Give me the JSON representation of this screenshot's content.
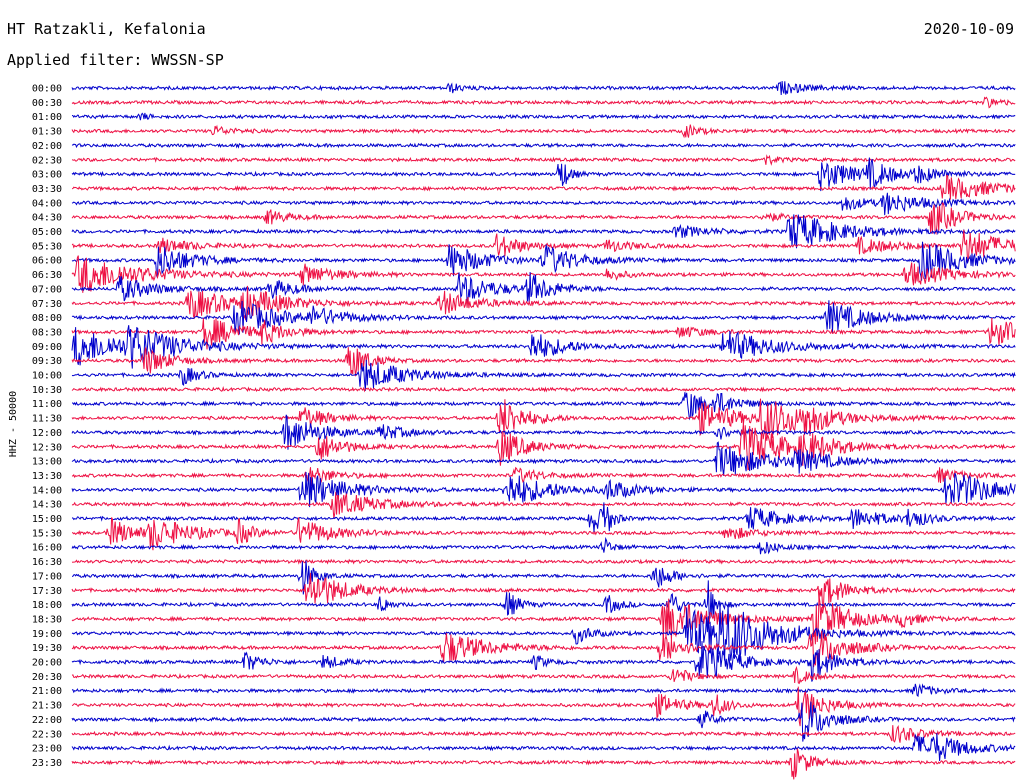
{
  "header": {
    "station": "HT Ratzakli, Kefalonia",
    "date": "2020-10-09",
    "filter_label": "Applied filter: WWSSN-SP"
  },
  "chart_data": {
    "type": "line",
    "ylabel": "HHZ - 50000",
    "row_labels": [
      "00:00",
      "00:30",
      "01:00",
      "01:30",
      "02:00",
      "02:30",
      "03:00",
      "03:30",
      "04:00",
      "04:30",
      "05:00",
      "05:30",
      "06:00",
      "06:30",
      "07:00",
      "07:30",
      "08:00",
      "08:30",
      "09:00",
      "09:30",
      "10:00",
      "10:30",
      "11:00",
      "11:30",
      "12:00",
      "12:30",
      "13:00",
      "13:30",
      "14:00",
      "14:30",
      "15:00",
      "15:30",
      "16:00",
      "16:30",
      "17:00",
      "17:30",
      "18:00",
      "18:30",
      "19:00",
      "19:30",
      "20:00",
      "20:30",
      "21:00",
      "21:30",
      "22:00",
      "22:30",
      "23:00",
      "23:30"
    ],
    "colors": [
      "#0000cc",
      "#ee1144"
    ],
    "row_minutes": 30,
    "events": [
      [
        0,
        12.0,
        3,
        0.4
      ],
      [
        0,
        22.5,
        6,
        0.5
      ],
      [
        1,
        29.0,
        4,
        0.4
      ],
      [
        2,
        2.2,
        2,
        0.3
      ],
      [
        3,
        4.5,
        4,
        0.4
      ],
      [
        3,
        19.5,
        3,
        0.6
      ],
      [
        5,
        22.0,
        3,
        0.4
      ],
      [
        6,
        15.5,
        2,
        1.6
      ],
      [
        6,
        23.8,
        8,
        1.3
      ],
      [
        6,
        25.3,
        6,
        1.0
      ],
      [
        6,
        26.8,
        6,
        0.6
      ],
      [
        7,
        27.7,
        12,
        1.0
      ],
      [
        8,
        24.5,
        6,
        0.6
      ],
      [
        8,
        25.8,
        10,
        0.8
      ],
      [
        9,
        6.2,
        5,
        0.6
      ],
      [
        9,
        27.3,
        6,
        1.6
      ],
      [
        9,
        22.0,
        4,
        0.4
      ],
      [
        10,
        22.8,
        12,
        1.6
      ],
      [
        10,
        19.2,
        8,
        0.5
      ],
      [
        11,
        2.8,
        8,
        0.6
      ],
      [
        11,
        13.5,
        6,
        1.0
      ],
      [
        11,
        17.0,
        6,
        0.5
      ],
      [
        11,
        25.0,
        10,
        0.6
      ],
      [
        11,
        28.3,
        10,
        1.4
      ],
      [
        12,
        2.7,
        8,
        1.4
      ],
      [
        12,
        12.0,
        8,
        1.4
      ],
      [
        12,
        15.0,
        8,
        1.2
      ],
      [
        12,
        27.0,
        10,
        1.6
      ],
      [
        13,
        0.2,
        14,
        1.6
      ],
      [
        13,
        7.3,
        8,
        0.8
      ],
      [
        13,
        26.5,
        10,
        1.0
      ],
      [
        13,
        17.0,
        4,
        0.5
      ],
      [
        14,
        1.5,
        8,
        1.0
      ],
      [
        14,
        12.3,
        8,
        1.3
      ],
      [
        14,
        14.5,
        6,
        1.2
      ],
      [
        14,
        6.3,
        6,
        0.8
      ],
      [
        15,
        3.7,
        10,
        1.3
      ],
      [
        15,
        5.4,
        10,
        1.1
      ],
      [
        15,
        11.7,
        8,
        1.0
      ],
      [
        16,
        5.2,
        10,
        1.5
      ],
      [
        16,
        24.0,
        10,
        1.3
      ],
      [
        16,
        7.6,
        8,
        0.7
      ],
      [
        17,
        4.2,
        8,
        1.4
      ],
      [
        17,
        6.0,
        6,
        0.8
      ],
      [
        17,
        19.3,
        6,
        0.5
      ],
      [
        17,
        29.2,
        8,
        1.2
      ],
      [
        18,
        0.1,
        12,
        1.6
      ],
      [
        18,
        1.8,
        12,
        1.4
      ],
      [
        18,
        14.6,
        8,
        1.2
      ],
      [
        18,
        20.7,
        12,
        1.3
      ],
      [
        19,
        2.3,
        6,
        1.2
      ],
      [
        19,
        8.8,
        4,
        1.8
      ],
      [
        20,
        3.5,
        4,
        0.8
      ],
      [
        20,
        9.2,
        10,
        1.4
      ],
      [
        22,
        19.5,
        4,
        1.5
      ],
      [
        22,
        20.4,
        6,
        0.8
      ],
      [
        23,
        7.3,
        6,
        1.0
      ],
      [
        23,
        13.6,
        6,
        1.8
      ],
      [
        23,
        19.9,
        10,
        1.3
      ],
      [
        23,
        21.9,
        12,
        1.6
      ],
      [
        23,
        23.3,
        4,
        1.0
      ],
      [
        24,
        6.8,
        8,
        1.5
      ],
      [
        24,
        9.8,
        6,
        0.6
      ],
      [
        24,
        20.5,
        4,
        0.6
      ],
      [
        25,
        7.8,
        6,
        1.2
      ],
      [
        25,
        13.6,
        6,
        1.5
      ],
      [
        25,
        21.3,
        10,
        2.0
      ],
      [
        25,
        23.2,
        8,
        1.0
      ],
      [
        26,
        20.5,
        12,
        1.4
      ],
      [
        26,
        23.0,
        8,
        0.8
      ],
      [
        27,
        7.5,
        6,
        0.8
      ],
      [
        27,
        14.1,
        6,
        0.6
      ],
      [
        27,
        27.5,
        6,
        0.6
      ],
      [
        28,
        7.3,
        10,
        1.6
      ],
      [
        28,
        13.8,
        10,
        1.5
      ],
      [
        28,
        17.0,
        6,
        0.8
      ],
      [
        28,
        27.8,
        12,
        1.6
      ],
      [
        29,
        8.3,
        10,
        1.1
      ],
      [
        30,
        16.5,
        2,
        1.6
      ],
      [
        30,
        16.9,
        2,
        1.6
      ],
      [
        30,
        21.5,
        8,
        1.0
      ],
      [
        30,
        24.8,
        8,
        0.8
      ],
      [
        30,
        26.6,
        4,
        0.8
      ],
      [
        31,
        1.2,
        6,
        1.2
      ],
      [
        31,
        2.5,
        10,
        1.2
      ],
      [
        31,
        7.2,
        8,
        1.1
      ],
      [
        31,
        5.3,
        3,
        1.0
      ],
      [
        31,
        20.8,
        6,
        0.6
      ],
      [
        32,
        16.9,
        2,
        0.8
      ],
      [
        32,
        21.9,
        4,
        0.6
      ],
      [
        34,
        7.3,
        3,
        1.6
      ],
      [
        34,
        18.5,
        4,
        1.2
      ],
      [
        35,
        7.5,
        8,
        1.8
      ],
      [
        35,
        23.8,
        6,
        1.4
      ],
      [
        36,
        9.8,
        2,
        0.8
      ],
      [
        36,
        13.8,
        3,
        1.2
      ],
      [
        36,
        17.0,
        3,
        0.8
      ],
      [
        36,
        19.0,
        2,
        1.5
      ],
      [
        36,
        20.2,
        2,
        2.0
      ],
      [
        37,
        18.8,
        10,
        2.0
      ],
      [
        37,
        23.6,
        8,
        2.0
      ],
      [
        37,
        26.3,
        4,
        0.6
      ],
      [
        38,
        16.0,
        4,
        0.8
      ],
      [
        38,
        19.5,
        12,
        2.0
      ],
      [
        38,
        20.6,
        12,
        2.0
      ],
      [
        39,
        11.8,
        10,
        1.4
      ],
      [
        39,
        18.7,
        6,
        1.2
      ],
      [
        39,
        23.5,
        8,
        1.8
      ],
      [
        40,
        5.5,
        4,
        0.8
      ],
      [
        40,
        8.0,
        4,
        0.6
      ],
      [
        40,
        14.7,
        3,
        0.6
      ],
      [
        40,
        19.9,
        8,
        1.8
      ],
      [
        40,
        23.5,
        6,
        1.4
      ],
      [
        41,
        19.1,
        4,
        0.8
      ],
      [
        41,
        23.0,
        4,
        0.6
      ],
      [
        42,
        26.8,
        4,
        0.6
      ],
      [
        43,
        18.5,
        6,
        1.0
      ],
      [
        43,
        20.4,
        3,
        1.0
      ],
      [
        43,
        23.1,
        6,
        1.6
      ],
      [
        44,
        20.0,
        3,
        0.8
      ],
      [
        44,
        23.2,
        6,
        2.0
      ],
      [
        45,
        26.1,
        6,
        0.8
      ],
      [
        46,
        26.8,
        10,
        1.0
      ],
      [
        46,
        27.4,
        6,
        0.6
      ],
      [
        47,
        22.9,
        4,
        1.4
      ]
    ]
  }
}
